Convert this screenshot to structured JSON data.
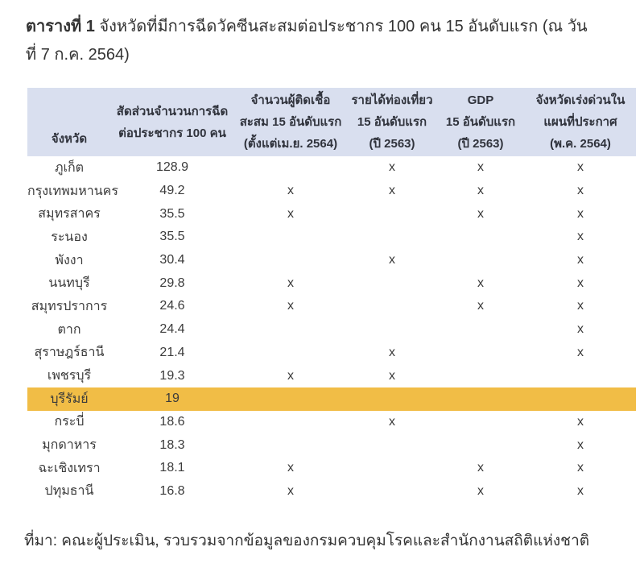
{
  "title": {
    "prefix_bold": "ตารางที่ 1",
    "line1_rest": " จังหวัดที่มีการฉีดวัคซีนสะสมต่อประชากร 100 คน 15 อันดับแรก (ณ วัน",
    "line2": "ที่ 7 ก.ค.  2564)"
  },
  "table": {
    "header": {
      "province": "จังหวัด",
      "rate": [
        "สัดส่วนจำนวนการฉีด",
        "ต่อประชากร 100 คน"
      ],
      "infected": [
        "จำนวนผู้ติดเชื้อ",
        "สะสม 15 อันดับแรก",
        "(ตั้งแต่เม.ย. 2564)"
      ],
      "tourism": [
        "รายได้ท่องเที่ยว",
        "15 อันดับแรก",
        "(ปี 2563)"
      ],
      "gdp": [
        "GDP",
        "15 อันดับแรก",
        "(ปี 2563)"
      ],
      "urgent": [
        "จังหวัดเร่งด่วนใน",
        "แผนที่ประกาศ",
        "(พ.ค. 2564)"
      ]
    },
    "rows": [
      {
        "province": "ภูเก็ต",
        "rate": "128.9",
        "infected": "",
        "tourism": "x",
        "gdp": "x",
        "urgent": "x",
        "highlight": false
      },
      {
        "province": "กรุงเทพมหานคร",
        "rate": "49.2",
        "infected": "x",
        "tourism": "x",
        "gdp": "x",
        "urgent": "x",
        "highlight": false
      },
      {
        "province": "สมุทรสาคร",
        "rate": "35.5",
        "infected": "x",
        "tourism": "",
        "gdp": "x",
        "urgent": "x",
        "highlight": false
      },
      {
        "province": "ระนอง",
        "rate": "35.5",
        "infected": "",
        "tourism": "",
        "gdp": "",
        "urgent": "x",
        "highlight": false
      },
      {
        "province": "พังงา",
        "rate": "30.4",
        "infected": "",
        "tourism": "x",
        "gdp": "",
        "urgent": "x",
        "highlight": false
      },
      {
        "province": "นนทบุรี",
        "rate": "29.8",
        "infected": "x",
        "tourism": "",
        "gdp": "x",
        "urgent": "x",
        "highlight": false
      },
      {
        "province": "สมุทรปราการ",
        "rate": "24.6",
        "infected": "x",
        "tourism": "",
        "gdp": "x",
        "urgent": "x",
        "highlight": false
      },
      {
        "province": "ตาก",
        "rate": "24.4",
        "infected": "",
        "tourism": "",
        "gdp": "",
        "urgent": "x",
        "highlight": false
      },
      {
        "province": "สุราษฎร์ธานี",
        "rate": "21.4",
        "infected": "",
        "tourism": "x",
        "gdp": "",
        "urgent": "x",
        "highlight": false
      },
      {
        "province": "เพชรบุรี",
        "rate": "19.3",
        "infected": "x",
        "tourism": "x",
        "gdp": "",
        "urgent": "",
        "highlight": false
      },
      {
        "province": "บุรีรัมย์",
        "rate": "19",
        "infected": "",
        "tourism": "",
        "gdp": "",
        "urgent": "",
        "highlight": true
      },
      {
        "province": "กระบี่",
        "rate": "18.6",
        "infected": "",
        "tourism": "x",
        "gdp": "",
        "urgent": "x",
        "highlight": false
      },
      {
        "province": "มุกดาหาร",
        "rate": "18.3",
        "infected": "",
        "tourism": "",
        "gdp": "",
        "urgent": "x",
        "highlight": false
      },
      {
        "province": "ฉะเชิงเทรา",
        "rate": "18.1",
        "infected": "x",
        "tourism": "",
        "gdp": "x",
        "urgent": "x",
        "highlight": false
      },
      {
        "province": "ปทุมธานี",
        "rate": "16.8",
        "infected": "x",
        "tourism": "",
        "gdp": "x",
        "urgent": "x",
        "highlight": false
      }
    ]
  },
  "source": "ที่มา: คณะผู้ประเมิน, รวบรวมจากข้อมูลของกรมควบคุมโรคและสำนักงานสถิติแห่งชาติ",
  "colors": {
    "header_bg": "#d9dfef",
    "highlight_bg": "#f1bd46",
    "text": "#3b3b3b"
  }
}
